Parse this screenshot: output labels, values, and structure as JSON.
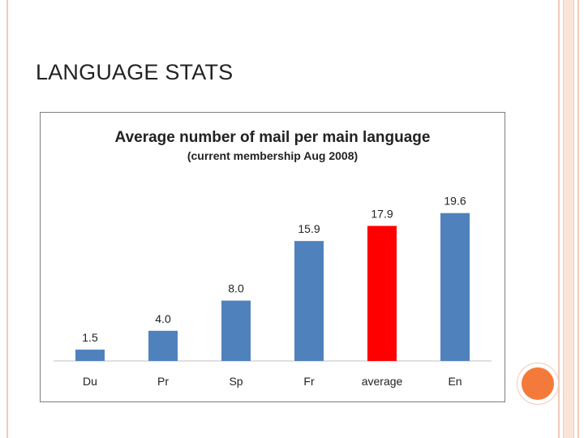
{
  "slide": {
    "title": "LANGUAGE STATS"
  },
  "theme": {
    "accent": "#f47a3c",
    "border": "#f3c9b8"
  },
  "chart_data": {
    "type": "bar",
    "title": "Average number of mail per main language",
    "subtitle": "(current membership Aug 2008)",
    "categories": [
      "Du",
      "Pr",
      "Sp",
      "Fr",
      "average",
      "En"
    ],
    "values": [
      1.5,
      4.0,
      8.0,
      15.9,
      17.9,
      19.6
    ],
    "value_labels": [
      "1.5",
      "4.0",
      "8.0",
      "15.9",
      "17.9",
      "19.6"
    ],
    "colors": [
      "#4f81bd",
      "#4f81bd",
      "#4f81bd",
      "#4f81bd",
      "#ff0000",
      "#4f81bd"
    ],
    "ylim": [
      0,
      20
    ],
    "xlabel": "",
    "ylabel": "",
    "grid": false,
    "legend": "none"
  }
}
